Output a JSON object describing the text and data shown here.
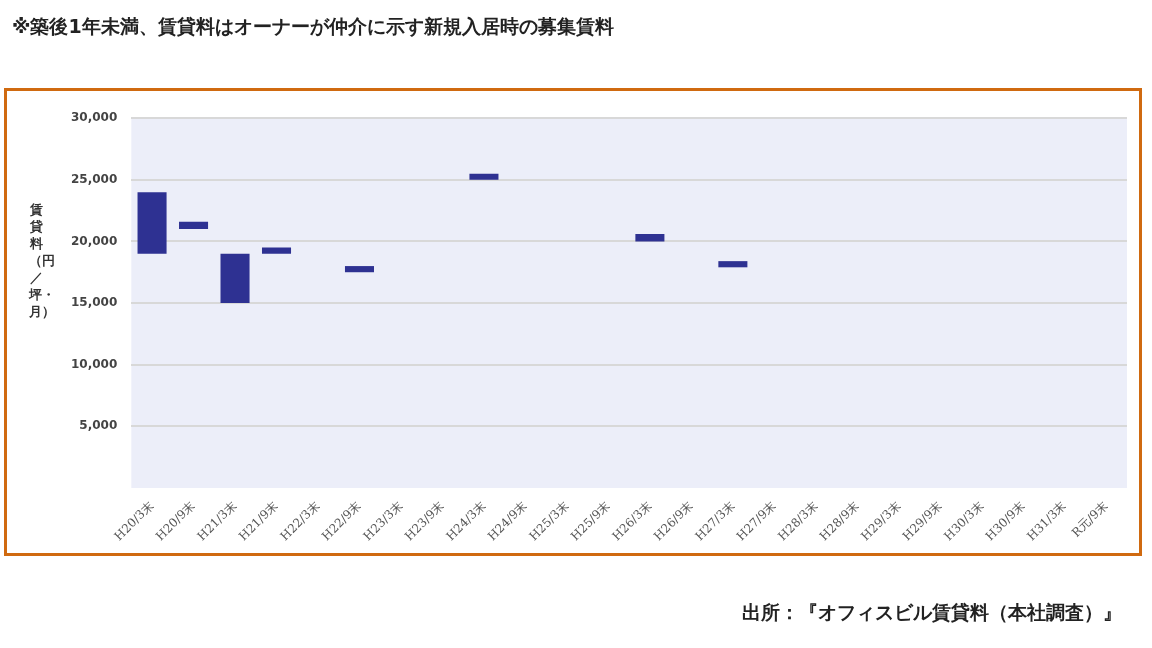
{
  "chart_data": {
    "type": "bar",
    "title": "※築後1年未満、賃貸料はオーナーが仲介に示す新規入居時の募集賃料",
    "ylabel": "賃貸料（円／坪・月）",
    "categories": [
      "H20/3末",
      "H20/9末",
      "H21/3末",
      "H21/9末",
      "H22/3末",
      "H22/9末",
      "H23/3末",
      "H23/9末",
      "H24/3末",
      "H24/9末",
      "H25/3末",
      "H25/9末",
      "H26/3末",
      "H26/9末",
      "H27/3末",
      "H27/9末",
      "H28/3末",
      "H28/9末",
      "H29/3末",
      "H29/9末",
      "H30/3末",
      "H30/9末",
      "H31/3末",
      "R元/9末"
    ],
    "base": [
      19000,
      21000,
      15000,
      19000,
      null,
      17500,
      null,
      null,
      25000,
      null,
      null,
      null,
      20000,
      null,
      17900,
      null,
      null,
      null,
      null,
      null,
      null,
      null,
      null,
      null
    ],
    "values": [
      5000,
      600,
      4000,
      500,
      null,
      500,
      null,
      null,
      500,
      null,
      null,
      null,
      600,
      null,
      500,
      null,
      null,
      null,
      null,
      null,
      null,
      null,
      null,
      null
    ],
    "color": "#2e3192",
    "ylim": [
      0,
      30000
    ],
    "yticks": [
      {
        "value": 5000,
        "label": "5,000"
      },
      {
        "value": 10000,
        "label": "10,000"
      },
      {
        "value": 15000,
        "label": "15,000"
      },
      {
        "value": 20000,
        "label": "20,000"
      },
      {
        "value": 25000,
        "label": "25,000"
      },
      {
        "value": 30000,
        "label": "30,000"
      }
    ],
    "grid": "y",
    "annotations": [
      "出所：『オフィスビル賃貸料（本社調査）』"
    ]
  }
}
